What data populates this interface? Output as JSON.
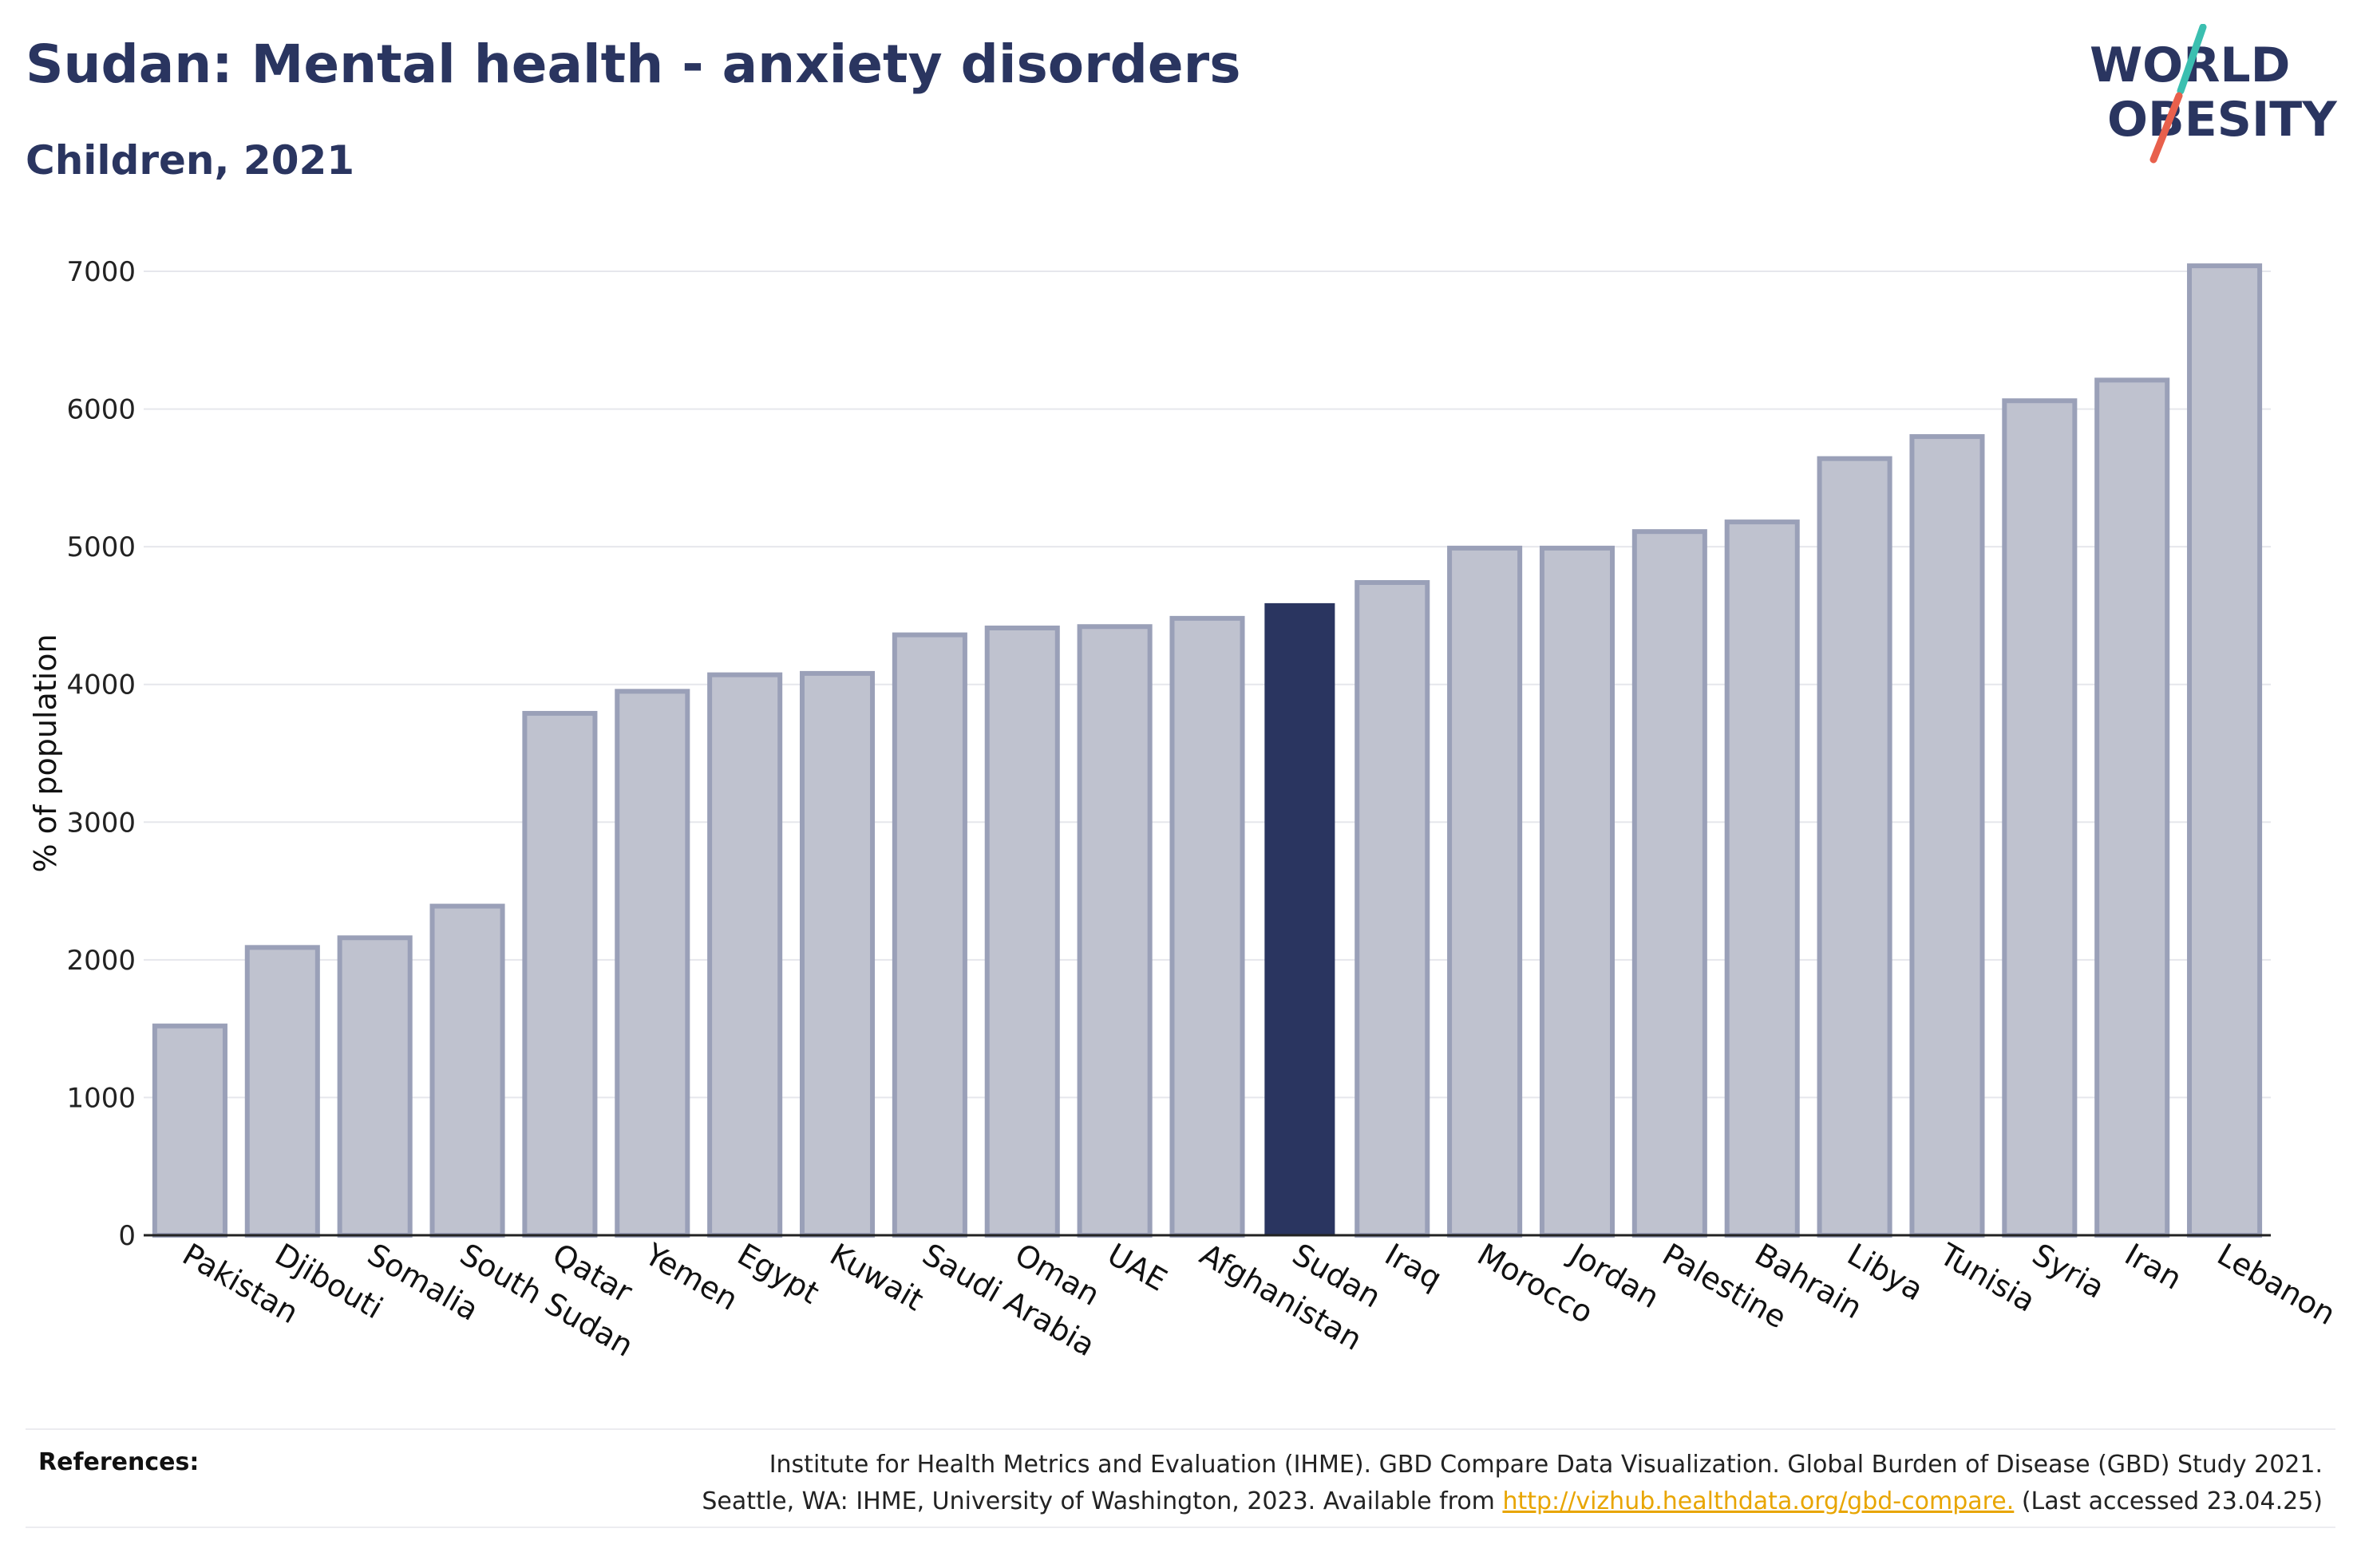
{
  "header": {
    "title": "Sudan: Mental health - anxiety disorders",
    "subtitle": "Children, 2021"
  },
  "logo": {
    "line1": "WORLD",
    "line2": "OBESITY",
    "colors": {
      "text": "#2a3560",
      "slash_top": "#3bbfb0",
      "slash_bottom": "#e8604c"
    }
  },
  "colors": {
    "bar_fill": "#bfc2cf",
    "bar_stroke": "#9aa0b8",
    "highlight": "#2a3560",
    "grid": "#e6e7ec",
    "axis": "#222222"
  },
  "chart_data": {
    "type": "bar",
    "title": "",
    "xlabel": "",
    "ylabel": "% of population",
    "ylim": [
      0,
      7000
    ],
    "yticks": [
      0,
      1000,
      2000,
      3000,
      4000,
      5000,
      6000,
      7000
    ],
    "grid": true,
    "highlight_category": "Sudan",
    "categories": [
      "Pakistan",
      "Djibouti",
      "Somalia",
      "South Sudan",
      "Qatar",
      "Yemen",
      "Egypt",
      "Kuwait",
      "Saudi Arabia",
      "Oman",
      "UAE",
      "Afghanistan",
      "Sudan",
      "Iraq",
      "Morocco",
      "Jordan",
      "Palestine",
      "Bahrain",
      "Libya",
      "Tunisia",
      "Syria",
      "Iran",
      "Lebanon"
    ],
    "values": [
      1520,
      2090,
      2160,
      2390,
      3790,
      3950,
      4070,
      4080,
      4360,
      4410,
      4420,
      4480,
      4590,
      4740,
      4990,
      4990,
      5110,
      5180,
      5640,
      5800,
      6060,
      6210,
      7040
    ]
  },
  "references": {
    "label": "References:",
    "line1": "Institute for Health Metrics and Evaluation (IHME). GBD Compare Data Visualization. Global Burden of Disease (GBD) Study 2021.",
    "line2_prefix": "Seattle, WA: IHME, University of Washington, 2023. Available from ",
    "link": "http://vizhub.healthdata.org/gbd-compare.",
    "line2_suffix": " (Last accessed 23.04.25)"
  }
}
